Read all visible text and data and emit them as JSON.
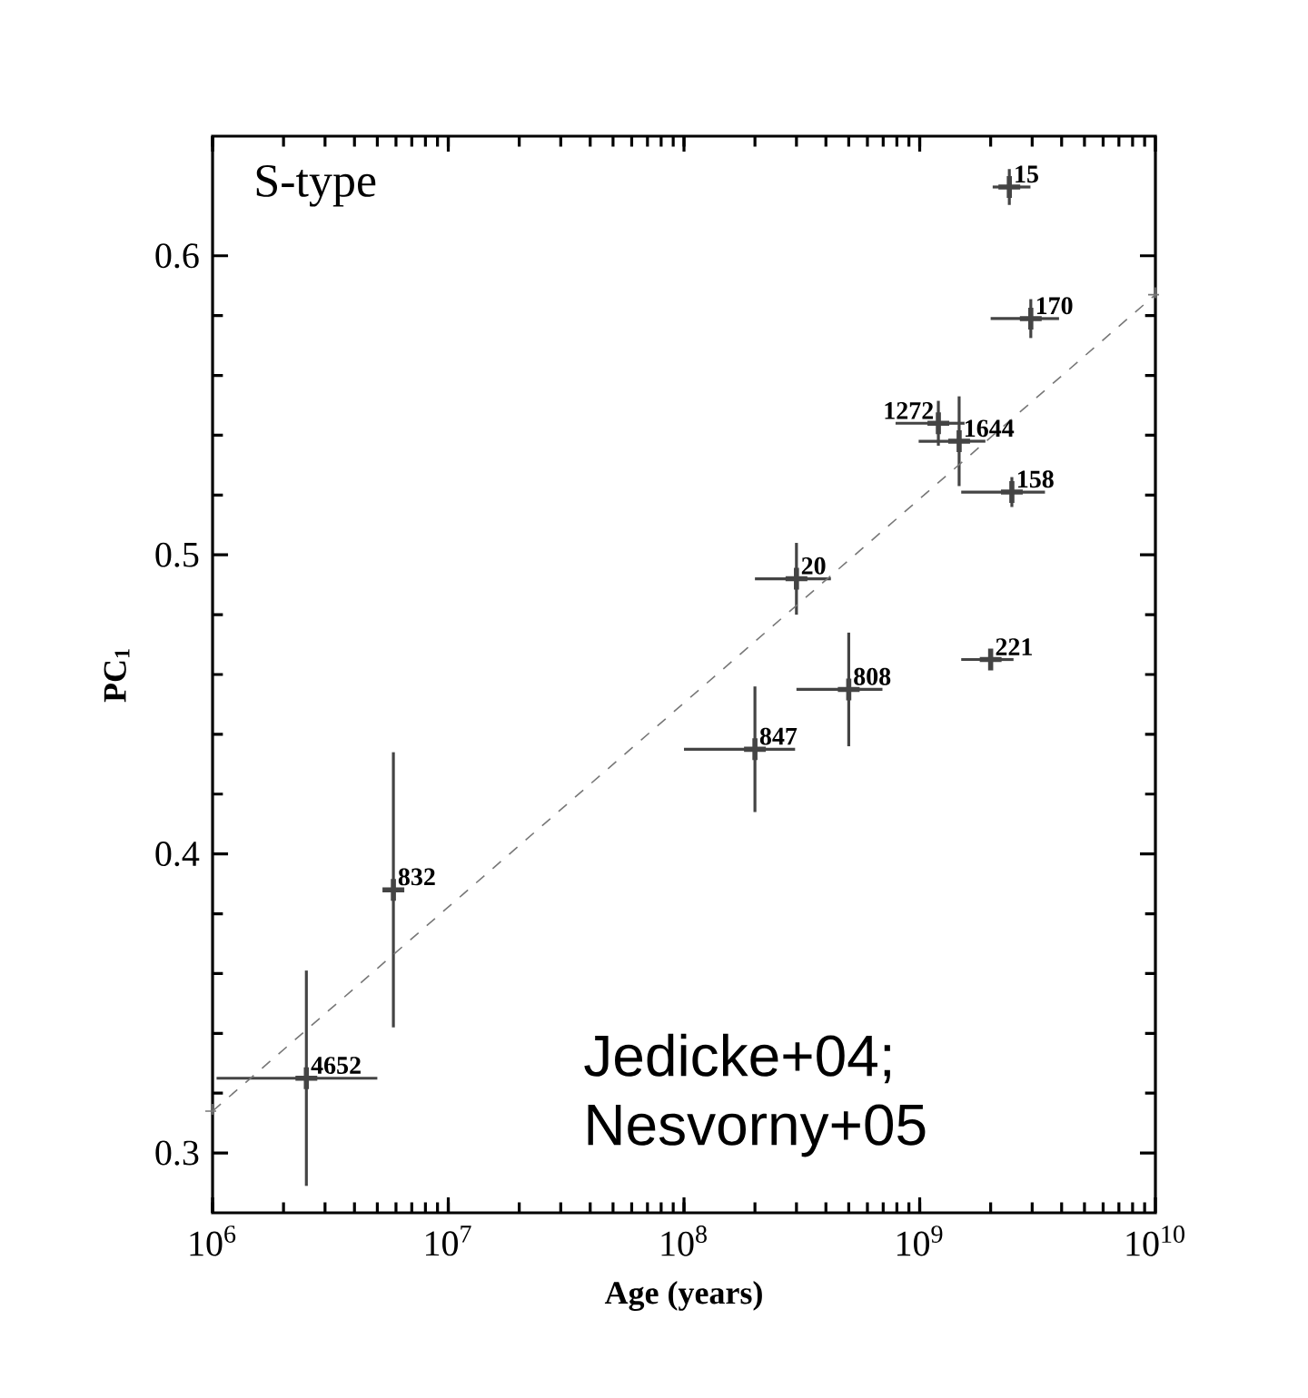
{
  "chart_data": {
    "type": "scatter",
    "xlabel": "Age (years)",
    "ylabel": "PC$_{1}$",
    "log": "x",
    "marker": "cross",
    "xlim": [
      1000000,
      10000000000
    ],
    "ylim": [
      0.28,
      0.64
    ],
    "xticks": [
      {
        "value": 1000000,
        "label": "10$^{6}$"
      },
      {
        "value": 10000000,
        "label": "10$^{7}$"
      },
      {
        "value": 100000000,
        "label": "10$^{8}$"
      },
      {
        "value": 1000000000,
        "label": "10$^{9}$"
      },
      {
        "value": 10000000000,
        "label": "10$^{10}$"
      }
    ],
    "yticks": [
      0.3,
      0.4,
      0.5,
      0.6
    ],
    "series": [
      {
        "color": "#444444",
        "x": [
          2500000,
          5850000,
          200000000,
          300000000,
          500000000,
          1200000000,
          1470000000,
          2000000000,
          2460000000,
          2400000000,
          2960000000
        ],
        "values": [
          0.325,
          0.388,
          0.435,
          0.492,
          0.455,
          0.544,
          0.538,
          0.465,
          0.521,
          0.623,
          0.579
        ],
        "errors": [
          0.036,
          0.046,
          0.021,
          0.012,
          0.019,
          0.0075,
          0.015,
          0.003,
          0.005,
          0.006,
          0.0065
        ],
        "xerrors": [
          [
            1040000,
            5000000
          ],
          null,
          [
            100000000,
            296000000
          ],
          [
            200000000,
            420000000
          ],
          [
            300000000,
            695000000
          ],
          [
            790000000,
            1550000000
          ],
          [
            990000000,
            1900000000
          ],
          [
            1500000000,
            2500000000
          ],
          [
            1500000000,
            3400000000
          ],
          [
            2040000000,
            2950000000
          ],
          [
            2000000000,
            3900000000
          ]
        ]
      },
      {
        "type": "line",
        "color": "#777777",
        "line_style": "dashed",
        "x": [
          1000000,
          10000000000
        ],
        "values": [
          0.314,
          0.587
        ]
      }
    ],
    "annotations": [
      "S-type",
      "Jedicke+04; Nesvorny+05",
      {
        "text": "4652",
        "x": 2500000,
        "y": 0.325
      },
      {
        "text": "832",
        "x": 5850000,
        "y": 0.388
      },
      {
        "text": "847",
        "x": 200000000,
        "y": 0.435
      },
      {
        "text": "20",
        "x": 300000000,
        "y": 0.492
      },
      {
        "text": "808",
        "x": 500000000,
        "y": 0.455
      },
      {
        "text": "1272",
        "x": 1200000000,
        "y": 0.544
      },
      {
        "text": "1644",
        "x": 1470000000,
        "y": 0.538
      },
      {
        "text": "221",
        "x": 2000000000,
        "y": 0.465
      },
      {
        "text": "158",
        "x": 2460000000,
        "y": 0.521
      },
      {
        "text": "15",
        "x": 2400000000,
        "y": 0.623
      },
      {
        "text": "170",
        "x": 2960000000,
        "y": 0.579
      }
    ]
  }
}
